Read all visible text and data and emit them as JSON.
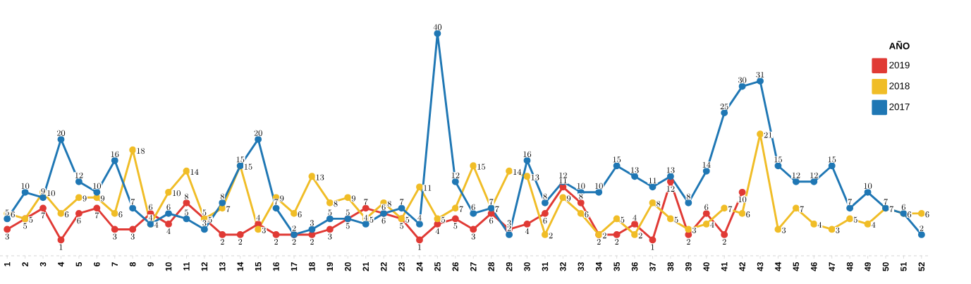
{
  "chart_data": {
    "type": "line",
    "legend_title": "AÑO",
    "legend": "top right",
    "marker": "circle",
    "data_labels": true,
    "grid": false,
    "categories": [
      "1",
      "2",
      "3",
      "4",
      "5",
      "6",
      "7",
      "8",
      "9",
      "10",
      "11",
      "12",
      "13",
      "14",
      "15",
      "16",
      "17",
      "18",
      "19",
      "20",
      "21",
      "22",
      "23",
      "24",
      "25",
      "26",
      "27",
      "28",
      "29",
      "30",
      "31",
      "32",
      "33",
      "34",
      "35",
      "36",
      "37",
      "38",
      "39",
      "40",
      "41",
      "42",
      "43",
      "44",
      "45",
      "46",
      "47",
      "48",
      "49",
      "50",
      "51",
      "52"
    ],
    "series": [
      {
        "name": "2019",
        "color": "#e03a35",
        "values": [
          3,
          5,
          7,
          1,
          6,
          7,
          3,
          3,
          6,
          4,
          8,
          5,
          2,
          2,
          4,
          2,
          2,
          2,
          3,
          5,
          7,
          6,
          5,
          1,
          4,
          5,
          3,
          6,
          3,
          4,
          6,
          11,
          8,
          2,
          2,
          4,
          1,
          12,
          2,
          6,
          2,
          10,
          null,
          null,
          null,
          null,
          null,
          null,
          null,
          null,
          null,
          null
        ]
      },
      {
        "name": "2018",
        "color": "#f0bd27",
        "values": [
          6,
          5,
          10,
          6,
          9,
          9,
          6,
          18,
          4,
          10,
          14,
          5,
          7,
          15,
          3,
          9,
          6,
          13,
          8,
          9,
          5,
          8,
          5,
          11,
          5,
          7,
          15,
          7,
          14,
          13,
          2,
          9,
          6,
          2,
          5,
          2,
          8,
          5,
          3,
          4,
          7,
          6,
          21,
          3,
          7,
          4,
          3,
          5,
          4,
          7,
          6,
          6
        ]
      },
      {
        "name": "2017",
        "color": "#1f77b4",
        "values": [
          5,
          10,
          9,
          20,
          12,
          10,
          16,
          7,
          4,
          6,
          5,
          3,
          8,
          15,
          20,
          7,
          2,
          3,
          5,
          5,
          4,
          6,
          7,
          4,
          40,
          12,
          6,
          7,
          2,
          16,
          8,
          12,
          10,
          10,
          15,
          13,
          11,
          13,
          8,
          14,
          25,
          30,
          31,
          15,
          12,
          12,
          15,
          7,
          10,
          7,
          6,
          2
        ]
      }
    ]
  }
}
